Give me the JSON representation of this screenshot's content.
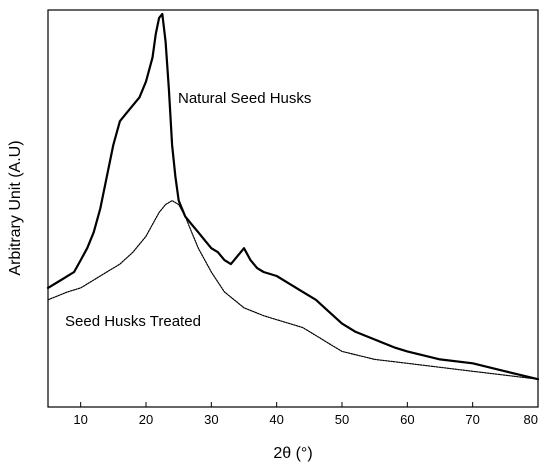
{
  "chart_data": {
    "type": "line",
    "title": "",
    "xlabel": "2θ (°)",
    "ylabel": "Arbitrary Unit (A.U)",
    "xlim": [
      5,
      80
    ],
    "x_ticks": [
      10,
      20,
      30,
      40,
      50,
      60,
      70,
      80
    ],
    "ylim": [
      0,
      100
    ],
    "y_ticks_visible": false,
    "grid": false,
    "legend": "none",
    "series": [
      {
        "name": "Natural Seed Husks",
        "color": "#000000",
        "x": [
          5,
          7,
          9,
          10,
          11,
          12,
          13,
          14,
          15,
          16,
          17,
          18,
          19,
          20,
          21,
          21.5,
          22,
          22.5,
          23,
          23.5,
          24,
          24.5,
          25,
          26,
          27,
          28,
          29,
          30,
          31,
          32,
          33,
          34,
          35,
          36,
          37,
          38,
          40,
          42,
          44,
          46,
          48,
          50,
          52,
          55,
          58,
          60,
          65,
          70,
          75,
          80
        ],
        "y": [
          30,
          32,
          34,
          37,
          40,
          44,
          50,
          58,
          66,
          72,
          74,
          76,
          78,
          82,
          88,
          94,
          98,
          99,
          92,
          80,
          66,
          58,
          52,
          48,
          46,
          44,
          42,
          40,
          39,
          37,
          36,
          38,
          40,
          37,
          35,
          34,
          33,
          31,
          29,
          27,
          24,
          21,
          19,
          17,
          15,
          14,
          12,
          11,
          9,
          7
        ]
      },
      {
        "name": "Seed Husks Treated",
        "color": "#000000",
        "x": [
          5,
          8,
          10,
          12,
          14,
          16,
          18,
          20,
          21,
          22,
          23,
          24,
          25,
          26,
          27,
          28,
          30,
          32,
          35,
          38,
          40,
          42,
          44,
          46,
          48,
          50,
          55,
          60,
          65,
          70,
          75,
          80
        ],
        "y": [
          27,
          29,
          30,
          32,
          34,
          36,
          39,
          43,
          46,
          49,
          51,
          52,
          51,
          48,
          44,
          40,
          34,
          29,
          25,
          23,
          22,
          21,
          20,
          18,
          16,
          14,
          12,
          11,
          10,
          9,
          8,
          7
        ]
      }
    ],
    "annotations": [
      {
        "text": "Natural Seed Husks",
        "series": 0
      },
      {
        "text": "Seed Husks Treated",
        "series": 1
      }
    ]
  }
}
